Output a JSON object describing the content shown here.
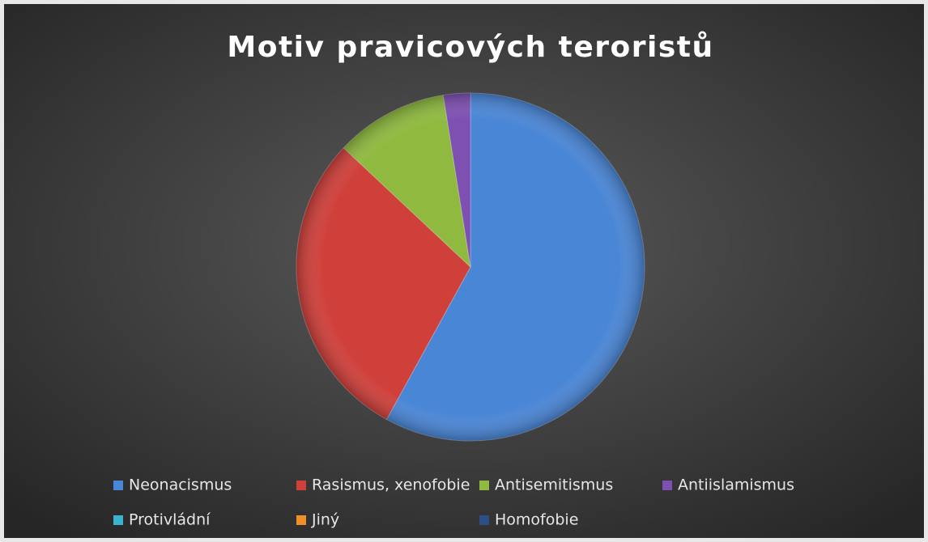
{
  "chart_data": {
    "type": "pie",
    "title": "Motiv pravicových teroristů",
    "categories": [
      "Neonacismus",
      "Rasismus, xenofobie",
      "Antisemitismus",
      "Antiislamismus",
      "Protivládní",
      "Jiný",
      "Homofobie"
    ],
    "values": [
      58,
      29,
      10.5,
      2.5,
      0,
      0,
      0
    ],
    "colors": [
      "#4a86d6",
      "#d0403b",
      "#8fba3f",
      "#7d50b2",
      "#3ab3cf",
      "#f08f2a",
      "#2d4f88"
    ],
    "legend": "bottom"
  }
}
